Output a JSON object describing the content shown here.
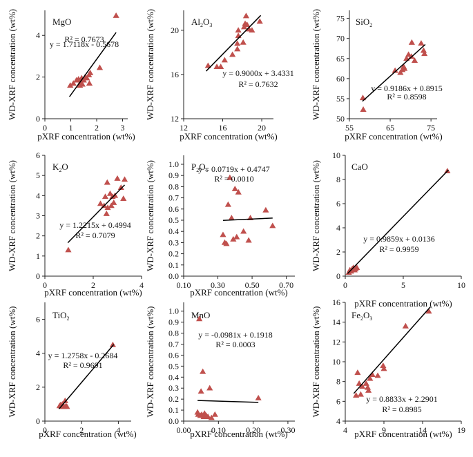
{
  "figure": {
    "x_axis_label": "pXRF concentration (wt%)",
    "y_axis_label": "WD-XRF concentration (wt%)"
  },
  "colors": {
    "marker": "#c0504d",
    "axis": "#222222",
    "fit_line": "#000000"
  },
  "chart_data": [
    {
      "type": "scatter",
      "title": "MgO",
      "title_parts": [
        [
          "MgO",
          "normal"
        ]
      ],
      "xlabel": "pXRF concentration (wt%)",
      "ylabel": "WD-XRF concentration (wt%)",
      "xlim": [
        0,
        3.2
      ],
      "ylim": [
        0,
        5.2
      ],
      "x_ticks": [
        0,
        1,
        2,
        3
      ],
      "y_ticks": [
        0,
        2,
        4
      ],
      "equation": "y = 1.7118x - 0.5678",
      "r2": "R² = 0.7673",
      "fit": {
        "slope": 1.7118,
        "intercept": -0.5678,
        "x_range": [
          0.95,
          2.75
        ]
      },
      "points": [
        {
          "x": 0.98,
          "y": 1.6
        },
        {
          "x": 1.1,
          "y": 1.7
        },
        {
          "x": 1.22,
          "y": 1.85
        },
        {
          "x": 1.3,
          "y": 1.9
        },
        {
          "x": 1.35,
          "y": 1.6
        },
        {
          "x": 1.38,
          "y": 1.75
        },
        {
          "x": 1.42,
          "y": 1.95
        },
        {
          "x": 1.45,
          "y": 1.65
        },
        {
          "x": 1.5,
          "y": 1.85
        },
        {
          "x": 1.55,
          "y": 2.0
        },
        {
          "x": 1.62,
          "y": 1.95
        },
        {
          "x": 1.7,
          "y": 2.1
        },
        {
          "x": 1.72,
          "y": 1.7
        },
        {
          "x": 1.75,
          "y": 2.2
        },
        {
          "x": 2.12,
          "y": 2.45
        },
        {
          "x": 2.75,
          "y": 4.95
        }
      ]
    },
    {
      "type": "scatter",
      "title": "Al2O3",
      "title_parts": [
        [
          "Al",
          "normal"
        ],
        [
          "2",
          "sub"
        ],
        [
          "O",
          "normal"
        ],
        [
          "3",
          "sub"
        ]
      ],
      "xlabel": "pXRF concentration (wt%)",
      "ylabel": "WD-XRF concentration (wt%)",
      "xlim": [
        12,
        21.2
      ],
      "ylim": [
        12,
        21.8
      ],
      "x_ticks": [
        12,
        16,
        20
      ],
      "y_ticks": [
        12,
        16,
        20
      ],
      "equation": "y = 0.9000x + 3.4331",
      "r2": "R² = 0.7632",
      "fit": {
        "slope": 0.9,
        "intercept": 3.4331,
        "x_range": [
          14.3,
          19.9
        ]
      },
      "points": [
        {
          "x": 14.5,
          "y": 16.8
        },
        {
          "x": 15.4,
          "y": 16.7
        },
        {
          "x": 15.8,
          "y": 16.7
        },
        {
          "x": 16.2,
          "y": 17.3
        },
        {
          "x": 17.0,
          "y": 17.8
        },
        {
          "x": 17.5,
          "y": 18.3
        },
        {
          "x": 17.5,
          "y": 18.8
        },
        {
          "x": 17.6,
          "y": 19.5
        },
        {
          "x": 17.6,
          "y": 20.0
        },
        {
          "x": 18.1,
          "y": 18.9
        },
        {
          "x": 18.2,
          "y": 20.3
        },
        {
          "x": 18.3,
          "y": 20.6
        },
        {
          "x": 18.4,
          "y": 21.3
        },
        {
          "x": 18.5,
          "y": 20.5
        },
        {
          "x": 18.7,
          "y": 20.1
        },
        {
          "x": 19.0,
          "y": 20.0
        },
        {
          "x": 19.8,
          "y": 20.8
        }
      ]
    },
    {
      "type": "scatter",
      "title": "SiO2",
      "title_parts": [
        [
          "SiO",
          "normal"
        ],
        [
          "2",
          "sub"
        ]
      ],
      "xlabel": "pXRF concentration (wt%)",
      "ylabel": "WD-XRF concentration (wt%)",
      "xlim": [
        55,
        76.5
      ],
      "ylim": [
        50,
        77
      ],
      "x_ticks": [
        55,
        65,
        75
      ],
      "y_ticks": [
        50,
        55,
        60,
        65,
        70,
        75
      ],
      "equation": "y = 0.9186x + 0.8915",
      "r2": "R² = 0.8598",
      "fit": {
        "slope": 0.9186,
        "intercept": 0.8915,
        "x_range": [
          58.2,
          73.6
        ]
      },
      "points": [
        {
          "x": 58.3,
          "y": 55.2
        },
        {
          "x": 58.4,
          "y": 52.3
        },
        {
          "x": 66.2,
          "y": 62.0
        },
        {
          "x": 67.5,
          "y": 61.5
        },
        {
          "x": 68.0,
          "y": 62.2
        },
        {
          "x": 68.3,
          "y": 63.0
        },
        {
          "x": 68.5,
          "y": 62.5
        },
        {
          "x": 69.0,
          "y": 65.0
        },
        {
          "x": 69.5,
          "y": 66.0
        },
        {
          "x": 70.2,
          "y": 65.5
        },
        {
          "x": 70.3,
          "y": 69.0
        },
        {
          "x": 71.0,
          "y": 64.5
        },
        {
          "x": 72.6,
          "y": 68.8
        },
        {
          "x": 73.2,
          "y": 67.0
        },
        {
          "x": 73.4,
          "y": 66.2
        }
      ]
    },
    {
      "type": "scatter",
      "title": "K2O",
      "title_parts": [
        [
          "K",
          "normal"
        ],
        [
          "2",
          "sub"
        ],
        [
          "O",
          "normal"
        ]
      ],
      "xlabel": "pXRF concentration (wt%)",
      "ylabel": "WD-XRF concentration (wt%)",
      "xlim": [
        0,
        4
      ],
      "ylim": [
        0,
        6
      ],
      "x_ticks": [
        0,
        2,
        4
      ],
      "y_ticks": [
        0,
        1,
        2,
        3,
        4,
        5,
        6
      ],
      "equation": "y = 1.2215x + 0.4994",
      "r2": "R² = 0.7079",
      "fit": {
        "slope": 1.2215,
        "intercept": 0.4994,
        "x_range": [
          0.95,
          3.3
        ]
      },
      "points": [
        {
          "x": 0.97,
          "y": 1.3
        },
        {
          "x": 2.3,
          "y": 3.6
        },
        {
          "x": 2.45,
          "y": 3.5
        },
        {
          "x": 2.5,
          "y": 3.95
        },
        {
          "x": 2.55,
          "y": 3.1
        },
        {
          "x": 2.58,
          "y": 4.65
        },
        {
          "x": 2.6,
          "y": 3.4
        },
        {
          "x": 2.7,
          "y": 4.1
        },
        {
          "x": 2.75,
          "y": 3.5
        },
        {
          "x": 2.8,
          "y": 3.95
        },
        {
          "x": 2.85,
          "y": 3.65
        },
        {
          "x": 2.9,
          "y": 4.0
        },
        {
          "x": 3.0,
          "y": 4.85
        },
        {
          "x": 3.15,
          "y": 4.4
        },
        {
          "x": 3.25,
          "y": 3.85
        },
        {
          "x": 3.3,
          "y": 4.8
        }
      ]
    },
    {
      "type": "scatter",
      "title": "P2O5",
      "title_parts": [
        [
          "P",
          "normal"
        ],
        [
          "2",
          "sub"
        ],
        [
          "O",
          "normal"
        ],
        [
          "5",
          "sub"
        ]
      ],
      "xlabel": "pXRF concentration (wt%)",
      "ylabel": "WD-XRF concentration (wt%)",
      "xlim": [
        0.1,
        0.75
      ],
      "ylim": [
        0,
        1.08
      ],
      "x_ticks": [
        0.1,
        0.3,
        0.5,
        0.7
      ],
      "y_ticks": [
        0,
        0.1,
        0.2,
        0.3,
        0.4,
        0.5,
        0.6,
        0.7,
        0.8,
        0.9,
        1.0
      ],
      "equation": "y = 0.0719x + 0.4747",
      "r2": "R² = 0.0010",
      "fit": {
        "slope": 0.0719,
        "intercept": 0.4747,
        "x_range": [
          0.33,
          0.62
        ]
      },
      "points": [
        {
          "x": 0.33,
          "y": 0.37
        },
        {
          "x": 0.34,
          "y": 0.3
        },
        {
          "x": 0.35,
          "y": 0.29
        },
        {
          "x": 0.36,
          "y": 0.64
        },
        {
          "x": 0.37,
          "y": 0.88
        },
        {
          "x": 0.38,
          "y": 0.52
        },
        {
          "x": 0.39,
          "y": 0.33
        },
        {
          "x": 0.4,
          "y": 0.78
        },
        {
          "x": 0.41,
          "y": 0.35
        },
        {
          "x": 0.42,
          "y": 0.75
        },
        {
          "x": 0.45,
          "y": 0.4
        },
        {
          "x": 0.48,
          "y": 0.32
        },
        {
          "x": 0.49,
          "y": 0.52
        },
        {
          "x": 0.58,
          "y": 0.59
        },
        {
          "x": 0.62,
          "y": 0.45
        }
      ]
    },
    {
      "type": "scatter",
      "title": "CaO",
      "title_parts": [
        [
          "CaO",
          "normal"
        ]
      ],
      "xlabel": "pXRF concentration (wt%)",
      "ylabel": "WD-XRF concentration (wt%)",
      "xlim": [
        0,
        10
      ],
      "ylim": [
        0,
        10
      ],
      "x_ticks": [
        0,
        5,
        10
      ],
      "y_ticks": [
        0,
        2,
        4,
        6,
        8,
        10
      ],
      "equation": "y = 0.9859x + 0.0136",
      "r2": "R² = 0.9959",
      "fit": {
        "slope": 0.9859,
        "intercept": 0.0136,
        "x_range": [
          0.2,
          8.9
        ]
      },
      "points": [
        {
          "x": 0.3,
          "y": 0.3
        },
        {
          "x": 0.4,
          "y": 0.5
        },
        {
          "x": 0.5,
          "y": 0.4
        },
        {
          "x": 0.6,
          "y": 0.6
        },
        {
          "x": 0.7,
          "y": 0.7
        },
        {
          "x": 0.8,
          "y": 0.5
        },
        {
          "x": 0.9,
          "y": 0.6
        },
        {
          "x": 1.0,
          "y": 0.7
        },
        {
          "x": 8.8,
          "y": 8.7
        }
      ]
    },
    {
      "type": "scatter",
      "title": "TiO2",
      "title_parts": [
        [
          "TiO",
          "normal"
        ],
        [
          "2",
          "sub"
        ]
      ],
      "xlabel": "pXRF concentration (wt%)",
      "ylabel": "WD-XRF concentration (wt%)",
      "xlim": [
        0,
        4.7
      ],
      "ylim": [
        0,
        7
      ],
      "x_ticks": [
        0,
        2,
        4
      ],
      "y_ticks": [
        0,
        2,
        4,
        6
      ],
      "equation": "y = 1.2758x - 0.2684",
      "r2": "R² = 0.9691",
      "fit": {
        "slope": 1.2758,
        "intercept": -0.2684,
        "x_range": [
          0.78,
          3.75
        ]
      },
      "points": [
        {
          "x": 0.8,
          "y": 0.9
        },
        {
          "x": 0.85,
          "y": 0.95
        },
        {
          "x": 0.9,
          "y": 0.85
        },
        {
          "x": 0.95,
          "y": 1.0
        },
        {
          "x": 1.0,
          "y": 0.9
        },
        {
          "x": 1.05,
          "y": 0.85
        },
        {
          "x": 1.1,
          "y": 1.2
        },
        {
          "x": 1.15,
          "y": 0.9
        },
        {
          "x": 1.2,
          "y": 0.85
        },
        {
          "x": 3.7,
          "y": 4.5
        }
      ]
    },
    {
      "type": "scatter",
      "title": "MnO",
      "title_parts": [
        [
          "MnO",
          "normal"
        ]
      ],
      "xlabel": "pXRF concentration (wt%)",
      "ylabel": "WD-XRF concentration (wt%)",
      "xlim": [
        0,
        0.32
      ],
      "ylim": [
        0,
        1.08
      ],
      "x_ticks": [
        0,
        0.1,
        0.2,
        0.3
      ],
      "y_ticks": [
        0,
        0.1,
        0.2,
        0.3,
        0.4,
        0.5,
        0.6,
        0.7,
        0.8,
        0.9,
        1.0
      ],
      "equation": "y = -0.0981x + 0.1918",
      "r2": "R² = 0.0003",
      "fit": {
        "slope": -0.0981,
        "intercept": 0.1918,
        "x_range": [
          0.04,
          0.215
        ]
      },
      "points": [
        {
          "x": 0.04,
          "y": 0.08
        },
        {
          "x": 0.042,
          "y": 0.06
        },
        {
          "x": 0.045,
          "y": 0.93
        },
        {
          "x": 0.048,
          "y": 0.05
        },
        {
          "x": 0.05,
          "y": 0.27
        },
        {
          "x": 0.052,
          "y": 0.06
        },
        {
          "x": 0.055,
          "y": 0.45
        },
        {
          "x": 0.058,
          "y": 0.04
        },
        {
          "x": 0.06,
          "y": 0.07
        },
        {
          "x": 0.065,
          "y": 0.05
        },
        {
          "x": 0.07,
          "y": 0.04
        },
        {
          "x": 0.075,
          "y": 0.3
        },
        {
          "x": 0.08,
          "y": 0.03
        },
        {
          "x": 0.09,
          "y": 0.06
        },
        {
          "x": 0.215,
          "y": 0.21
        }
      ]
    },
    {
      "type": "scatter",
      "title": "Fe2O3",
      "title_parts": [
        [
          "Fe",
          "normal"
        ],
        [
          "2",
          "sub"
        ],
        [
          "O",
          "normal"
        ],
        [
          "3",
          "sub"
        ]
      ],
      "xlabel": "pXRF concentration (wt%)",
      "ylabel": "WD-XRF concentration (wt%)",
      "xlim": [
        4,
        19
      ],
      "ylim": [
        4,
        16
      ],
      "x_ticks": [
        4,
        9,
        14,
        19
      ],
      "y_ticks": [
        4,
        6,
        8,
        10,
        12,
        14,
        16
      ],
      "equation": "y = 0.8833x + 2.2901",
      "r2": "R² = 0.8985",
      "fit": {
        "slope": 0.8833,
        "intercept": 2.2901,
        "x_range": [
          5.1,
          15.0
        ]
      },
      "points": [
        {
          "x": 5.4,
          "y": 6.6
        },
        {
          "x": 5.6,
          "y": 8.9
        },
        {
          "x": 5.8,
          "y": 7.8
        },
        {
          "x": 6.0,
          "y": 6.7
        },
        {
          "x": 6.2,
          "y": 7.5
        },
        {
          "x": 6.7,
          "y": 7.8
        },
        {
          "x": 6.9,
          "y": 7.4
        },
        {
          "x": 7.0,
          "y": 7.1
        },
        {
          "x": 7.2,
          "y": 8.3
        },
        {
          "x": 7.5,
          "y": 8.7
        },
        {
          "x": 8.2,
          "y": 8.6
        },
        {
          "x": 8.9,
          "y": 9.6
        },
        {
          "x": 9.0,
          "y": 9.3
        },
        {
          "x": 11.8,
          "y": 13.6
        },
        {
          "x": 14.8,
          "y": 15.1
        }
      ]
    }
  ]
}
